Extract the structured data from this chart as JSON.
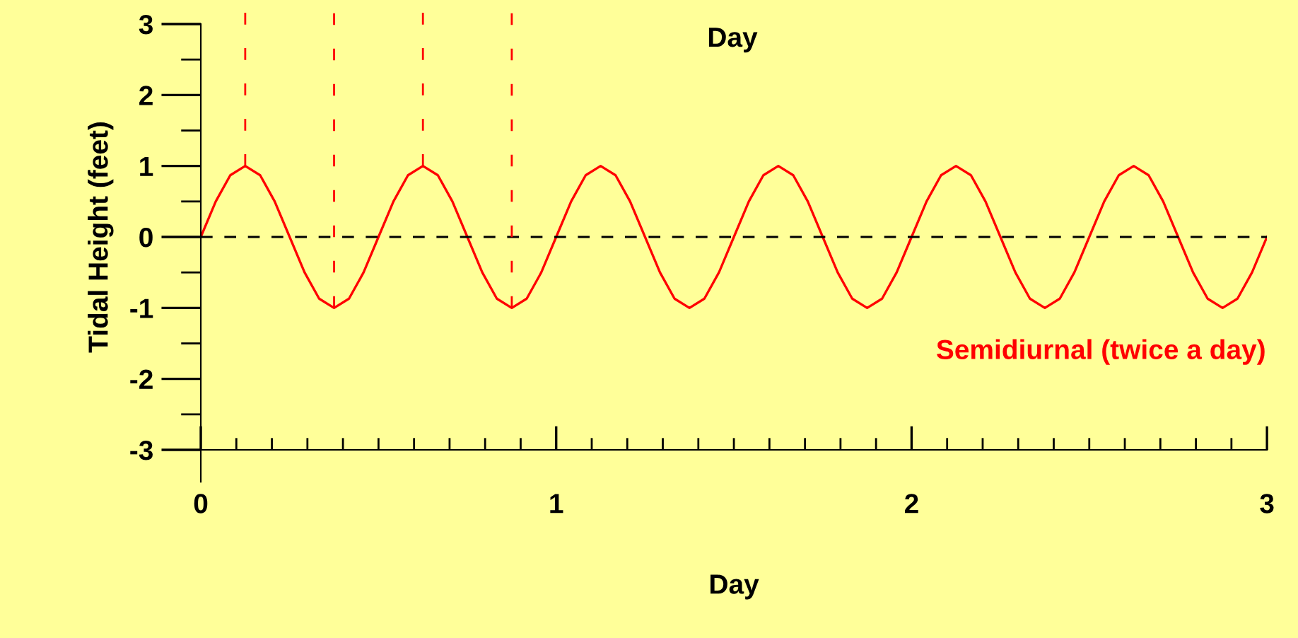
{
  "chart_data": {
    "type": "line",
    "xlabel": "Day",
    "ylabel": "Tidal Height (feet)",
    "annotations": [
      "Semidiurnal (twice a day)",
      "Day"
    ],
    "x": [
      0,
      0.042,
      0.083,
      0.125,
      0.167,
      0.208,
      0.25,
      0.292,
      0.333,
      0.375,
      0.417,
      0.458,
      0.5,
      0.542,
      0.583,
      0.625,
      0.667,
      0.708,
      0.75,
      0.792,
      0.833,
      0.875,
      0.917,
      0.958,
      1,
      1.042,
      1.083,
      1.125,
      1.167,
      1.208,
      1.25,
      1.292,
      1.333,
      1.375,
      1.417,
      1.458,
      1.5,
      1.542,
      1.583,
      1.625,
      1.667,
      1.708,
      1.75,
      1.792,
      1.833,
      1.875,
      1.917,
      1.958,
      2,
      2.042,
      2.083,
      2.125,
      2.167,
      2.208,
      2.25,
      2.292,
      2.333,
      2.375,
      2.417,
      2.458,
      2.5,
      2.542,
      2.583,
      2.625,
      2.667,
      2.708,
      2.75,
      2.792,
      2.833,
      2.875,
      2.917,
      2.958,
      3
    ],
    "series": [
      {
        "color": "#ff0000",
        "values": [
          0,
          0.5,
          0.87,
          1,
          0.87,
          0.5,
          0,
          -0.5,
          -0.87,
          -1,
          -0.87,
          -0.5,
          0,
          0.5,
          0.87,
          1,
          0.87,
          0.5,
          0,
          -0.5,
          -0.87,
          -1,
          -0.87,
          -0.5,
          0,
          0.5,
          0.87,
          1,
          0.87,
          0.5,
          0,
          -0.5,
          -0.87,
          -1,
          -0.87,
          -0.5,
          0,
          0.5,
          0.87,
          1,
          0.87,
          0.5,
          0,
          -0.5,
          -0.87,
          -1,
          -0.87,
          -0.5,
          0,
          0.5,
          0.87,
          1,
          0.87,
          0.5,
          0,
          -0.5,
          -0.87,
          -1,
          -0.87,
          -0.5,
          0,
          0.5,
          0.87,
          1,
          0.87,
          0.5,
          0,
          -0.5,
          -0.87,
          -1,
          -0.87,
          -0.5,
          0
        ]
      }
    ],
    "xlim": [
      0,
      3
    ],
    "xticks": [
      0,
      1,
      2,
      3
    ],
    "ylim": [
      -3,
      3
    ],
    "yticks": [
      -3,
      -2,
      -1,
      0,
      1,
      2,
      3
    ],
    "ref_lines": [
      {
        "axis": "y",
        "value": 0,
        "color": "#000000",
        "line_style": "dashed"
      },
      {
        "axis": "x",
        "value": 0.125,
        "color": "#ff0000",
        "line_style": "dashed"
      },
      {
        "axis": "x",
        "value": 0.375,
        "color": "#ff0000",
        "line_style": "dashed"
      },
      {
        "axis": "x",
        "value": 0.625,
        "color": "#ff0000",
        "line_style": "dashed"
      },
      {
        "axis": "x",
        "value": 0.875,
        "color": "#ff0000",
        "line_style": "dashed"
      }
    ],
    "grid": false,
    "legend": false,
    "marker": "none",
    "line_style": "solid"
  }
}
